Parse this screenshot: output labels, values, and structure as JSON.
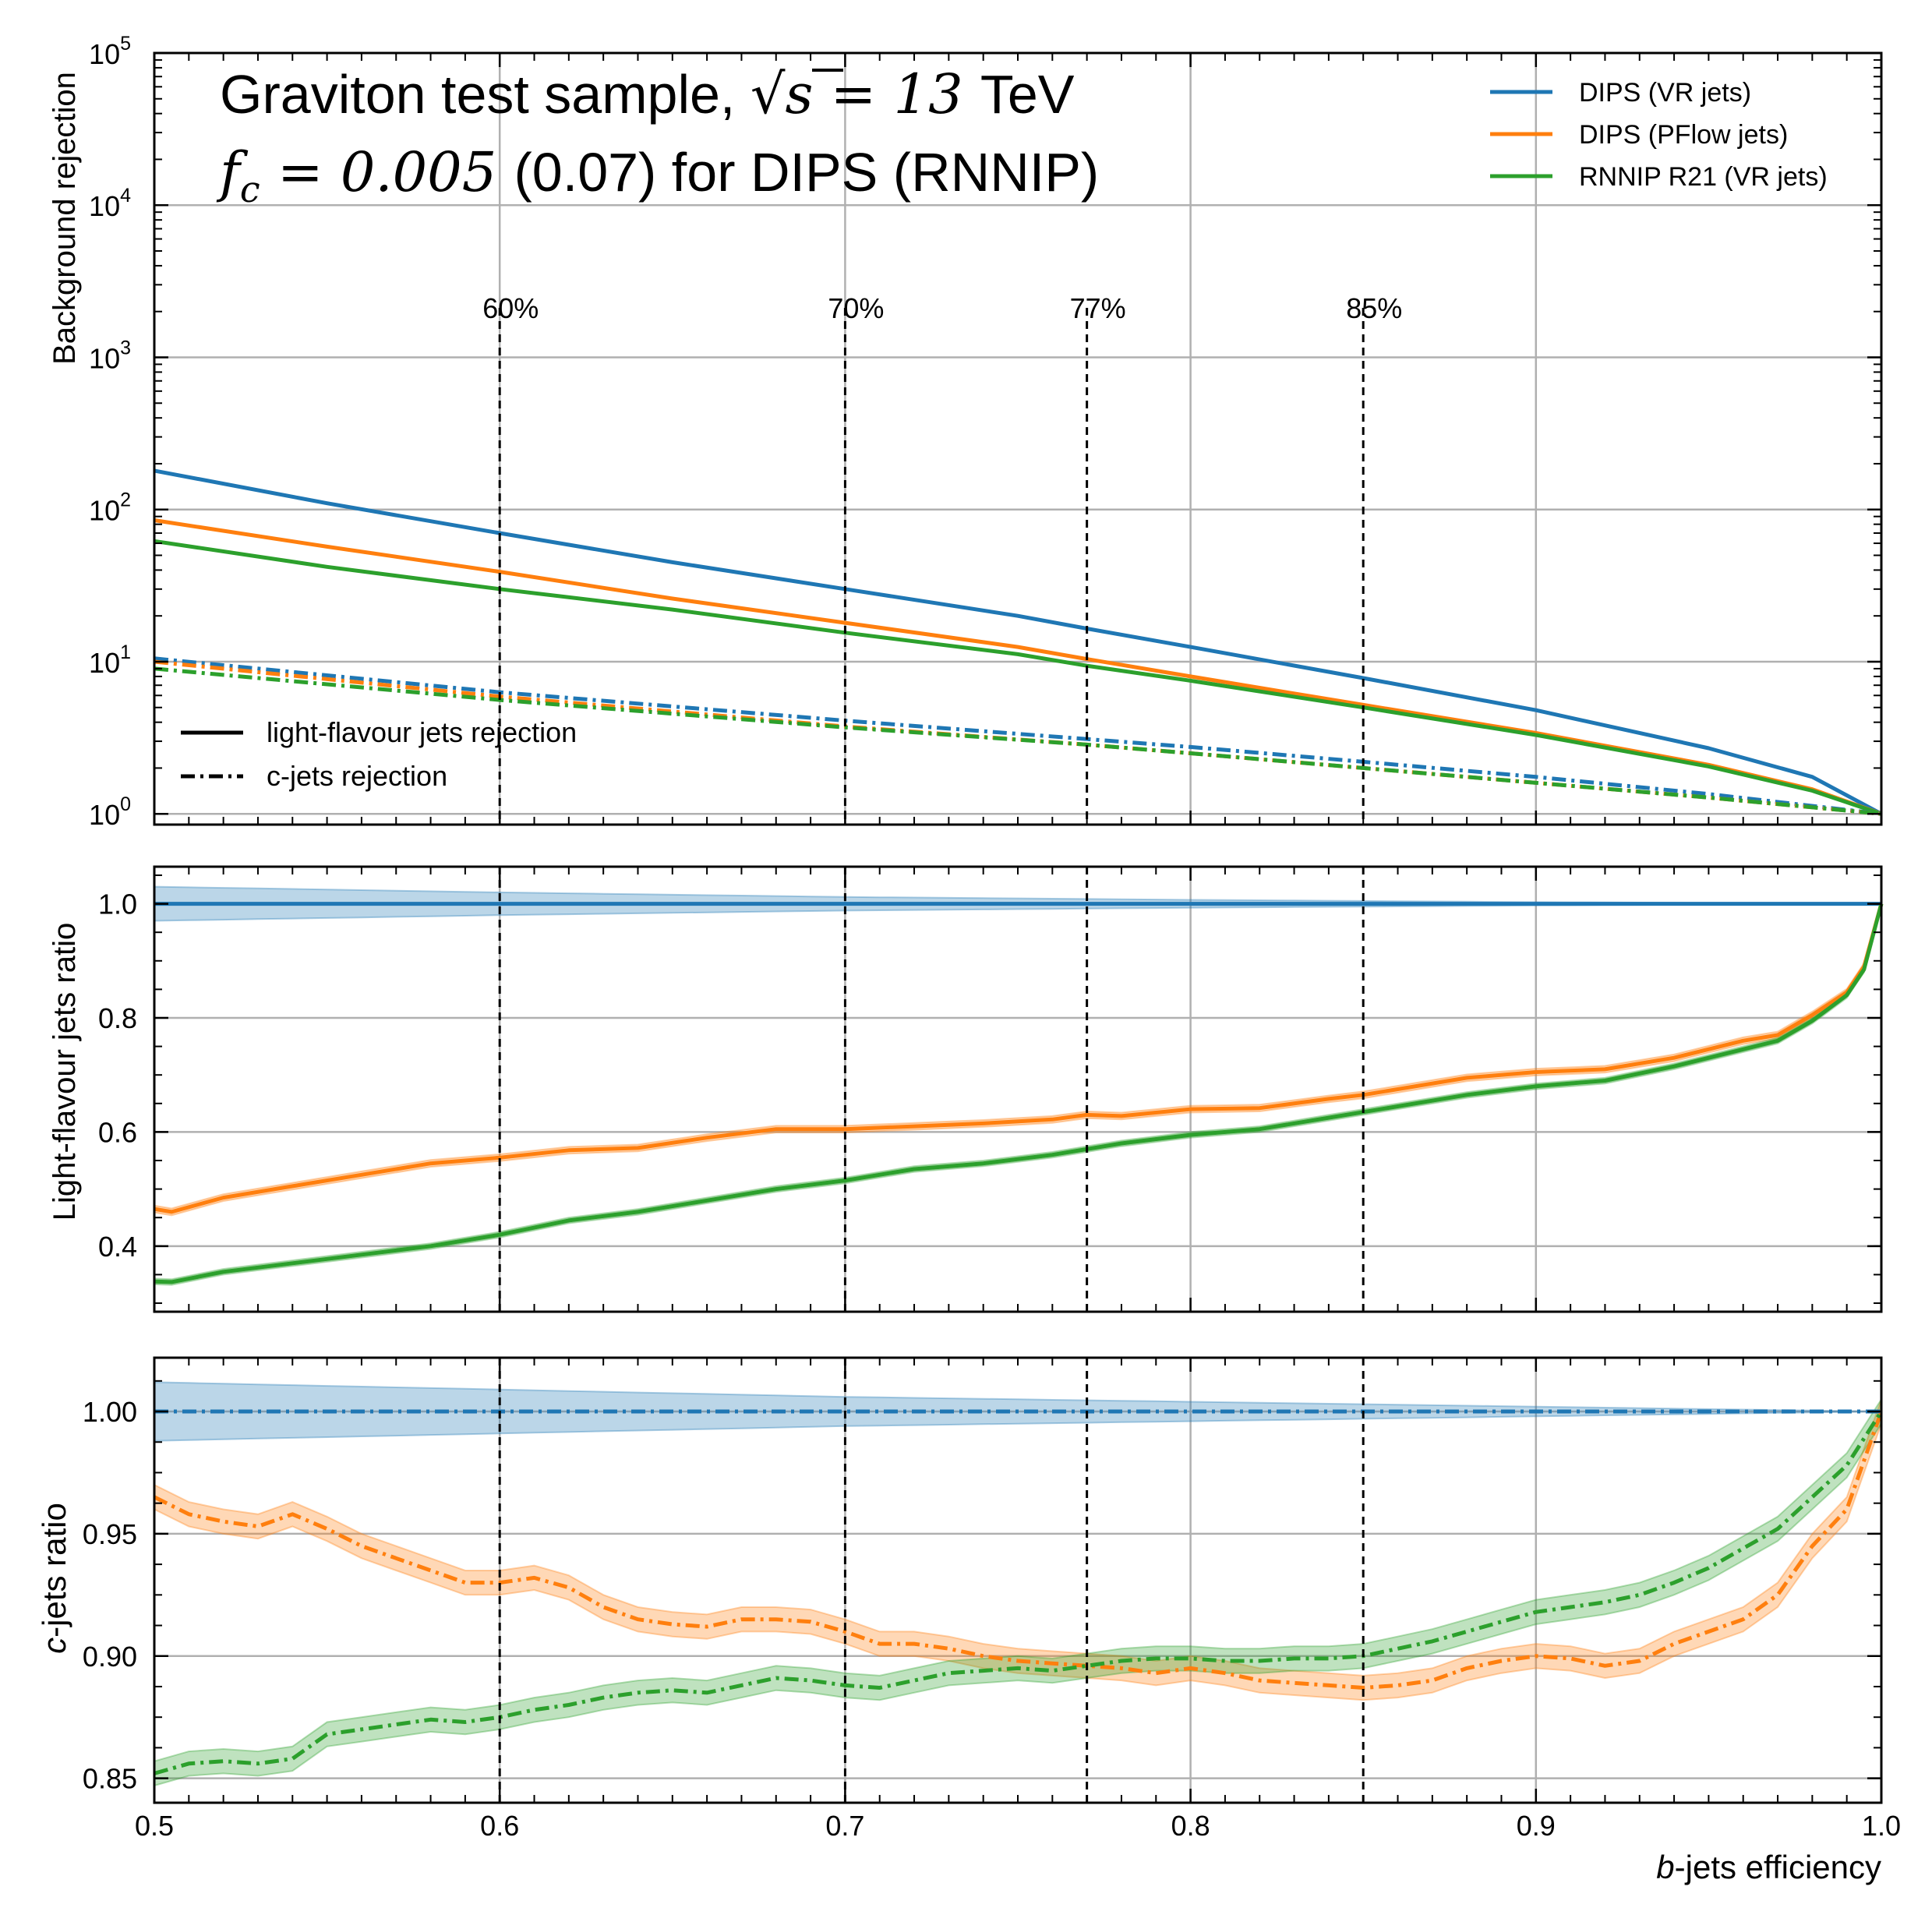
{
  "chart_data": [
    {
      "type": "line",
      "panel": "top",
      "ylabel": "Background rejection",
      "yscale": "log",
      "ylim": [
        0.85,
        100000
      ],
      "xlim": [
        0.5,
        1.0
      ],
      "y_tick_exponents": [
        "0",
        "1",
        "2",
        "3",
        "4",
        "5"
      ],
      "title_lines": {
        "line1_text": "Graviton test sample, ",
        "line1_sqrt": "√",
        "line1_s": "s",
        "line1_eq": " = 13 ",
        "line1_unit": "TeV",
        "line2_f": "f",
        "line2_sub": "c",
        "line2_eq": " = 0.005 ",
        "line2_text": "(0.07) for DIPS (RNNIP)"
      },
      "wp_lines": [
        {
          "x": 0.6,
          "label": "60%"
        },
        {
          "x": 0.7,
          "label": "70%"
        },
        {
          "x": 0.77,
          "label": "77%"
        },
        {
          "x": 0.85,
          "label": "85%"
        }
      ],
      "legend": {
        "position": "top-right",
        "entries": [
          "DIPS (VR jets)",
          "DIPS (PFlow jets)",
          "RNNIP R21 (VR jets)"
        ],
        "style_position": "bottom-left",
        "style_entries": [
          "light-flavour jets rejection",
          "c-jets rejection"
        ]
      },
      "series": [
        {
          "name": "DIPS (VR jets)",
          "style": "solid",
          "color": "#1f77b4",
          "x": [
            0.5,
            0.55,
            0.6,
            0.65,
            0.7,
            0.75,
            0.77,
            0.8,
            0.85,
            0.9,
            0.95,
            0.98,
            1.0
          ],
          "values": [
            180,
            110,
            70,
            45,
            30,
            20,
            16.5,
            12.5,
            7.8,
            4.8,
            2.7,
            1.75,
            1.0
          ]
        },
        {
          "name": "DIPS (PFlow jets)",
          "style": "solid",
          "color": "#ff7f0e",
          "x": [
            0.5,
            0.55,
            0.6,
            0.65,
            0.7,
            0.75,
            0.77,
            0.8,
            0.85,
            0.9,
            0.95,
            0.98,
            1.0
          ],
          "values": [
            85,
            57,
            39,
            26,
            18,
            12.5,
            10.4,
            8.0,
            5.2,
            3.4,
            2.1,
            1.45,
            1.0
          ]
        },
        {
          "name": "RNNIP R21 (VR jets)",
          "style": "solid",
          "color": "#2ca02c",
          "x": [
            0.5,
            0.55,
            0.6,
            0.65,
            0.7,
            0.75,
            0.77,
            0.8,
            0.85,
            0.9,
            0.95,
            0.98,
            1.0
          ],
          "values": [
            62,
            42,
            30,
            22,
            15.5,
            11.2,
            9.4,
            7.5,
            5.0,
            3.3,
            2.05,
            1.42,
            1.0
          ]
        },
        {
          "name": "DIPS (VR jets)",
          "style": "dashdot",
          "color": "#1f77b4",
          "x": [
            0.5,
            0.6,
            0.7,
            0.77,
            0.8,
            0.85,
            0.9,
            0.95,
            1.0
          ],
          "values": [
            10.5,
            6.3,
            4.1,
            3.1,
            2.75,
            2.2,
            1.75,
            1.35,
            1.0
          ]
        },
        {
          "name": "DIPS (PFlow jets)",
          "style": "dashdot",
          "color": "#ff7f0e",
          "x": [
            0.5,
            0.6,
            0.7,
            0.77,
            0.8,
            0.85,
            0.9,
            0.95,
            1.0
          ],
          "values": [
            10.0,
            5.9,
            3.75,
            2.85,
            2.5,
            2.0,
            1.6,
            1.28,
            1.0
          ]
        },
        {
          "name": "RNNIP R21 (VR jets)",
          "style": "dashdot",
          "color": "#2ca02c",
          "x": [
            0.5,
            0.6,
            0.7,
            0.77,
            0.8,
            0.85,
            0.9,
            0.95,
            1.0
          ],
          "values": [
            9.0,
            5.6,
            3.7,
            2.85,
            2.5,
            2.0,
            1.6,
            1.28,
            1.0
          ]
        }
      ]
    },
    {
      "type": "line",
      "panel": "middle",
      "ylabel": "Light-flavour jets ratio",
      "ylim": [
        0.285,
        1.065
      ],
      "xlim": [
        0.5,
        1.0
      ],
      "yticks": [
        "0.4",
        "0.6",
        "0.8",
        "1.0"
      ],
      "series": [
        {
          "name": "DIPS (VR jets)",
          "style": "solid",
          "color": "#1f77b4",
          "x": [
            0.5,
            1.0
          ],
          "values": [
            1.0,
            1.0
          ],
          "band_x": [
            0.5,
            0.6,
            0.7,
            0.8,
            0.9,
            1.0
          ],
          "band_half_width": [
            0.03,
            0.02,
            0.012,
            0.007,
            0.003,
            0.0
          ]
        },
        {
          "name": "DIPS (PFlow jets)",
          "style": "solid",
          "color": "#ff7f0e",
          "x": [
            0.5,
            0.505,
            0.52,
            0.54,
            0.56,
            0.58,
            0.6,
            0.62,
            0.64,
            0.66,
            0.68,
            0.7,
            0.72,
            0.74,
            0.76,
            0.77,
            0.78,
            0.8,
            0.82,
            0.84,
            0.85,
            0.88,
            0.9,
            0.92,
            0.94,
            0.96,
            0.97,
            0.98,
            0.99,
            0.995,
            1.0
          ],
          "values": [
            0.465,
            0.46,
            0.485,
            0.505,
            0.525,
            0.545,
            0.555,
            0.568,
            0.572,
            0.59,
            0.605,
            0.605,
            0.61,
            0.615,
            0.622,
            0.63,
            0.628,
            0.64,
            0.642,
            0.658,
            0.665,
            0.695,
            0.705,
            0.71,
            0.73,
            0.76,
            0.77,
            0.805,
            0.845,
            0.89,
            1.0
          ],
          "band_half_width": 0.006
        },
        {
          "name": "RNNIP R21 (VR jets)",
          "style": "solid",
          "color": "#2ca02c",
          "x": [
            0.5,
            0.505,
            0.52,
            0.54,
            0.56,
            0.58,
            0.6,
            0.62,
            0.64,
            0.66,
            0.68,
            0.7,
            0.72,
            0.74,
            0.76,
            0.77,
            0.78,
            0.8,
            0.82,
            0.84,
            0.85,
            0.88,
            0.9,
            0.92,
            0.94,
            0.96,
            0.97,
            0.98,
            0.99,
            0.995,
            1.0
          ],
          "values": [
            0.338,
            0.337,
            0.355,
            0.37,
            0.385,
            0.4,
            0.42,
            0.445,
            0.46,
            0.48,
            0.5,
            0.515,
            0.535,
            0.545,
            0.56,
            0.57,
            0.58,
            0.595,
            0.605,
            0.625,
            0.635,
            0.665,
            0.68,
            0.69,
            0.715,
            0.745,
            0.76,
            0.795,
            0.84,
            0.885,
            1.0
          ],
          "band_half_width": 0.005
        }
      ]
    },
    {
      "type": "line",
      "panel": "bottom",
      "ylabel_var": "c",
      "ylabel_rest": "-jets ratio",
      "xlabel_var": "b",
      "xlabel_rest": "-jets efficiency",
      "ylim": [
        0.84,
        1.022
      ],
      "xlim": [
        0.5,
        1.0
      ],
      "yticks": [
        "0.85",
        "0.90",
        "0.95",
        "1.00"
      ],
      "xticks": [
        "0.5",
        "0.6",
        "0.7",
        "0.8",
        "0.9",
        "1.0"
      ],
      "series": [
        {
          "name": "DIPS (VR jets)",
          "style": "dashdot",
          "color": "#1f77b4",
          "x": [
            0.5,
            1.0
          ],
          "values": [
            1.0,
            1.0
          ],
          "band_x": [
            0.5,
            0.6,
            0.7,
            0.8,
            0.9,
            1.0
          ],
          "band_half_width": [
            0.012,
            0.009,
            0.006,
            0.004,
            0.002,
            0.0
          ]
        },
        {
          "name": "DIPS (PFlow jets)",
          "style": "dashdot",
          "color": "#ff7f0e",
          "x": [
            0.5,
            0.51,
            0.52,
            0.53,
            0.54,
            0.55,
            0.56,
            0.57,
            0.58,
            0.59,
            0.6,
            0.61,
            0.62,
            0.63,
            0.64,
            0.65,
            0.66,
            0.67,
            0.68,
            0.69,
            0.7,
            0.71,
            0.72,
            0.73,
            0.74,
            0.75,
            0.76,
            0.77,
            0.78,
            0.79,
            0.8,
            0.81,
            0.82,
            0.83,
            0.84,
            0.85,
            0.86,
            0.87,
            0.88,
            0.89,
            0.9,
            0.91,
            0.92,
            0.93,
            0.94,
            0.95,
            0.96,
            0.97,
            0.98,
            0.99,
            1.0
          ],
          "values": [
            0.965,
            0.958,
            0.955,
            0.953,
            0.958,
            0.952,
            0.945,
            0.94,
            0.935,
            0.93,
            0.93,
            0.932,
            0.928,
            0.92,
            0.915,
            0.913,
            0.912,
            0.915,
            0.915,
            0.914,
            0.91,
            0.905,
            0.905,
            0.903,
            0.9,
            0.898,
            0.897,
            0.896,
            0.895,
            0.893,
            0.895,
            0.893,
            0.89,
            0.889,
            0.888,
            0.887,
            0.888,
            0.89,
            0.895,
            0.898,
            0.9,
            0.899,
            0.896,
            0.898,
            0.905,
            0.91,
            0.915,
            0.925,
            0.945,
            0.96,
            1.0
          ],
          "band_half_width": 0.005
        },
        {
          "name": "RNNIP R21 (VR jets)",
          "style": "dashdot",
          "color": "#2ca02c",
          "x": [
            0.5,
            0.51,
            0.52,
            0.53,
            0.54,
            0.55,
            0.56,
            0.57,
            0.58,
            0.59,
            0.6,
            0.61,
            0.62,
            0.63,
            0.64,
            0.65,
            0.66,
            0.67,
            0.68,
            0.69,
            0.7,
            0.71,
            0.72,
            0.73,
            0.74,
            0.75,
            0.76,
            0.77,
            0.78,
            0.79,
            0.8,
            0.81,
            0.82,
            0.83,
            0.84,
            0.85,
            0.86,
            0.87,
            0.88,
            0.89,
            0.9,
            0.91,
            0.92,
            0.93,
            0.94,
            0.95,
            0.96,
            0.97,
            0.98,
            0.99,
            1.0
          ],
          "values": [
            0.852,
            0.856,
            0.857,
            0.856,
            0.858,
            0.868,
            0.87,
            0.872,
            0.874,
            0.873,
            0.875,
            0.878,
            0.88,
            0.883,
            0.885,
            0.886,
            0.885,
            0.888,
            0.891,
            0.89,
            0.888,
            0.887,
            0.89,
            0.893,
            0.894,
            0.895,
            0.894,
            0.896,
            0.898,
            0.899,
            0.899,
            0.898,
            0.898,
            0.899,
            0.899,
            0.9,
            0.903,
            0.906,
            0.91,
            0.914,
            0.918,
            0.92,
            0.922,
            0.925,
            0.93,
            0.936,
            0.944,
            0.952,
            0.965,
            0.978,
            1.0
          ],
          "band_half_width": 0.005
        }
      ]
    }
  ]
}
